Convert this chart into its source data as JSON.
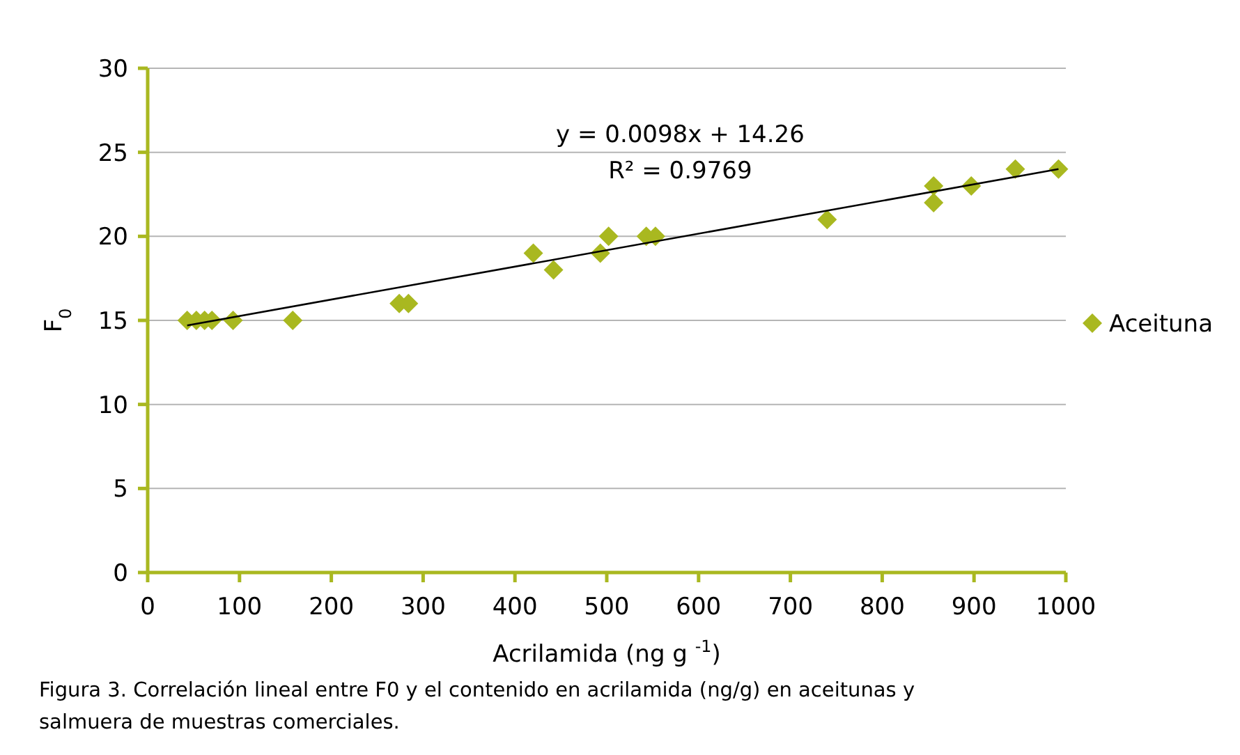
{
  "chart_data": {
    "type": "scatter",
    "xlabel": "Acrilamida (ng g $^{-1}$)",
    "ylabel": "F$_{0}$",
    "xlim": [
      0,
      1000
    ],
    "xticks": [
      0,
      100,
      200,
      300,
      400,
      500,
      600,
      700,
      800,
      900,
      1000
    ],
    "ylim": [
      0,
      30
    ],
    "yticks": [
      0,
      5,
      10,
      15,
      20,
      25,
      30
    ],
    "grid": "y",
    "legend": "right",
    "series": [
      {
        "name": "Aceituna",
        "color": "#a9b820",
        "marker": "diamond",
        "x": [
          43,
          53,
          62,
          70,
          93,
          158,
          274,
          284,
          420,
          442,
          493,
          502,
          543,
          553,
          740,
          856,
          856,
          897,
          945,
          992
        ],
        "values": [
          15,
          15,
          15,
          15,
          15,
          15,
          16,
          16,
          19,
          18,
          19,
          20,
          20,
          20,
          21,
          23,
          22,
          23,
          24,
          24
        ]
      },
      {
        "type": "line",
        "color": "#000000",
        "x": [
          43,
          992
        ],
        "values": [
          14.7,
          24.0
        ]
      }
    ],
    "annotations": [
      "y = 0.0098x + 14.26",
      "R² = 0.9769",
      "Figura 3. Correlación lineal entre F0 y el contenido en acrilamida (ng/g) en aceitunas y salmuera de muestras comerciales."
    ]
  }
}
